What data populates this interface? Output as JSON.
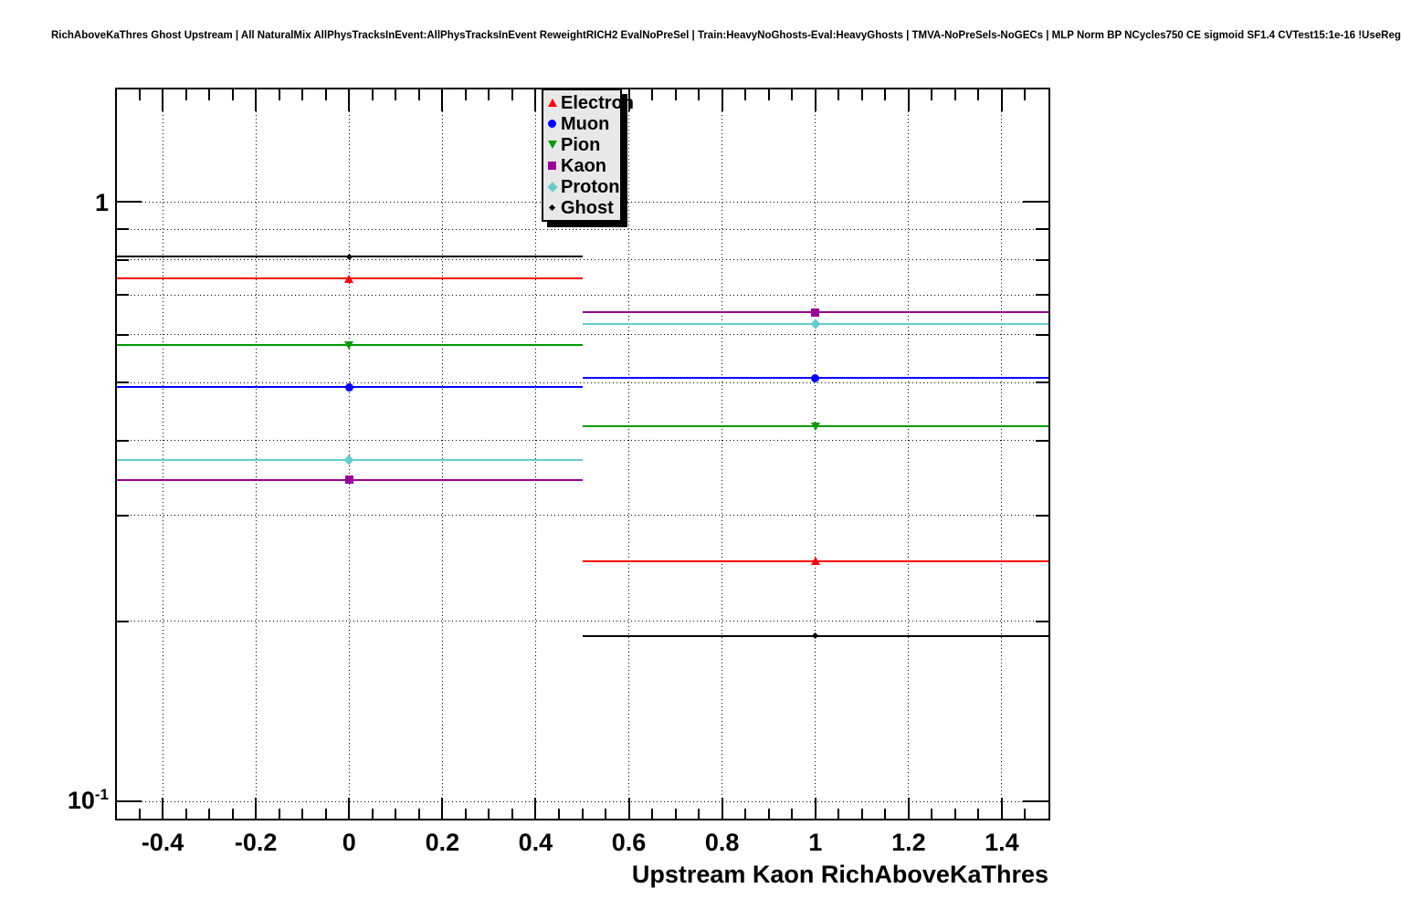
{
  "page": {
    "background": "#ffffff"
  },
  "chart_data": {
    "type": "scatter",
    "title": "RichAboveKaThres Ghost Upstream | All NaturalMix AllPhysTracksInEvent:AllPhysTracksInEvent ReweightRICH2 EvalNoPreSel | Train:HeavyNoGhosts-Eval:HeavyGhosts | TMVA-NoPreSels-NoGECs | MLP Norm BP NCycles750 CE sigmoid SF1.4 CVTest15:1e-16 !UseReg",
    "xlabel": "Upstream Kaon RichAboveKaThres",
    "ylabel": "",
    "yscale": "log",
    "grid": true,
    "xlim": [
      -0.5,
      1.5
    ],
    "ylim": [
      0.0935,
      1.54
    ],
    "x": [
      0,
      1
    ],
    "xerr": 0.5,
    "series": [
      {
        "name": "Electron",
        "color": "#ff0000",
        "marker": "triangle-up",
        "values": [
          0.745,
          0.252
        ]
      },
      {
        "name": "Muon",
        "color": "#0000ff",
        "marker": "circle",
        "values": [
          0.491,
          0.508
        ]
      },
      {
        "name": "Pion",
        "color": "#009900",
        "marker": "triangle-down",
        "values": [
          0.577,
          0.422
        ]
      },
      {
        "name": "Kaon",
        "color": "#990099",
        "marker": "square",
        "values": [
          0.344,
          0.654
        ]
      },
      {
        "name": "Proton",
        "color": "#66cccc",
        "marker": "diamond",
        "values": [
          0.371,
          0.625
        ]
      },
      {
        "name": "Ghost",
        "color": "#000000",
        "marker": "diamond-small",
        "values": [
          0.81,
          0.189
        ]
      }
    ],
    "xticks": {
      "major_step": 0.2,
      "minor_step": 0.05,
      "labels": [
        {
          "text": "-0.4",
          "value": -0.4
        },
        {
          "text": "-0.2",
          "value": -0.2
        },
        {
          "text": "0",
          "value": 0
        },
        {
          "text": "0.2",
          "value": 0.2
        },
        {
          "text": "0.4",
          "value": 0.4
        },
        {
          "text": "0.6",
          "value": 0.6
        },
        {
          "text": "0.8",
          "value": 0.8
        },
        {
          "text": "1",
          "value": 1
        },
        {
          "text": "1.2",
          "value": 1.2
        },
        {
          "text": "1.4",
          "value": 1.4
        }
      ]
    },
    "yticks": {
      "major": [
        {
          "base": "1",
          "exp": "",
          "value": 1
        },
        {
          "base": "10",
          "exp": "-1",
          "value": 0.1
        }
      ],
      "minor": [
        0.9,
        0.8,
        0.7,
        0.6,
        0.5,
        0.4,
        0.3,
        0.2
      ]
    },
    "legend": {
      "position": "top-right",
      "background": "#e8e8e8",
      "entries": [
        "Electron",
        "Muon",
        "Pion",
        "Kaon",
        "Proton",
        "Ghost"
      ]
    }
  }
}
